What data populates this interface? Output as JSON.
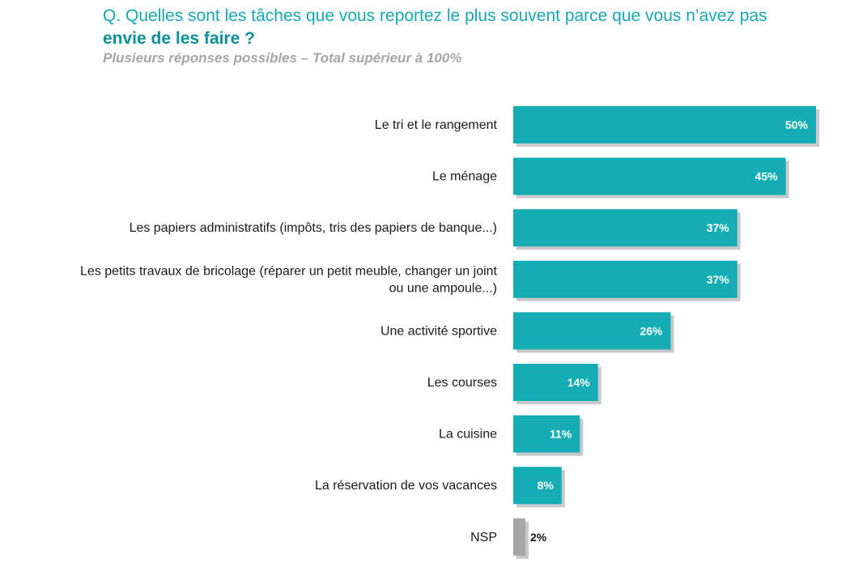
{
  "header": {
    "question_line1": "Q. Quelles sont les tâches que vous reportez le plus souvent parce que vous n’avez pas",
    "question_line2": "envie de les faire ?",
    "subtitle": "Plusieurs réponses possibles – Total supérieur à 100%"
  },
  "colors": {
    "bar": "#14adb5",
    "bar_nsp": "#a6a6a6",
    "shadow": "#c9c9c9",
    "value_text": "#ffffff",
    "value_text_nsp": "#1a1a1a"
  },
  "chart_data": {
    "type": "bar",
    "orientation": "horizontal",
    "categories": [
      [
        "Le tri et le rangement"
      ],
      [
        "Le ménage"
      ],
      [
        "Les papiers administratifs (impôts, tris des papiers de banque...)"
      ],
      [
        "Les petits travaux de bricolage (réparer un petit meuble, changer un joint",
        "ou une ampoule...)"
      ],
      [
        "Une activité sportive"
      ],
      [
        "Les courses"
      ],
      [
        "La cuisine"
      ],
      [
        "La réservation de vos vacances"
      ],
      [
        "NSP"
      ]
    ],
    "values": [
      50,
      45,
      37,
      37,
      26,
      14,
      11,
      8,
      2
    ],
    "value_labels": [
      "50%",
      "45%",
      "37%",
      "37%",
      "26%",
      "14%",
      "11%",
      "8%",
      "2%"
    ],
    "highlight": [
      false,
      false,
      false,
      false,
      false,
      false,
      false,
      false,
      true
    ],
    "xlim": [
      0,
      50
    ],
    "grid": false,
    "legend": "none"
  }
}
